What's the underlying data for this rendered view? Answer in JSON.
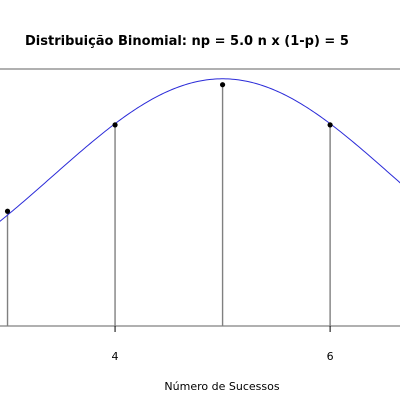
{
  "chart_data": {
    "type": "line",
    "title": "Distribuição Binomial:  np = 5.0    n x (1-p) = 5",
    "xlabel": "Número de Sucessos",
    "ylabel": "",
    "xlim": [
      2.93,
      6.65
    ],
    "ylim": [
      0,
      0.262
    ],
    "x_ticks": [
      4,
      6
    ],
    "grid": false,
    "series": [
      {
        "kind": "stem",
        "x": [
          3,
          4,
          5,
          6
        ],
        "values": [
          0.117,
          0.205,
          0.246,
          0.205
        ]
      },
      {
        "kind": "curve",
        "curve_sigma": 1.58
      }
    ],
    "colors": {
      "curve": "#2a2ad8",
      "stem": "#808080",
      "marker": "#000000",
      "frame": "#808080"
    }
  }
}
